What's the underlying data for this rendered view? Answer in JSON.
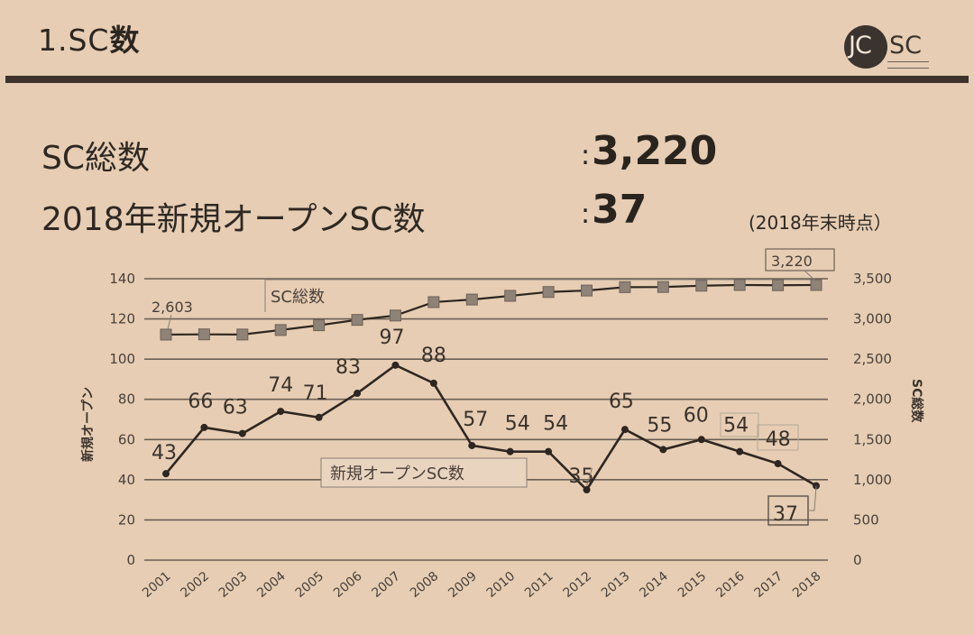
{
  "header": {
    "title_prefix": "1.SC",
    "title_suffix": "数",
    "logo_jc": "JC",
    "logo_sc": "SC"
  },
  "stats": [
    {
      "label": "SC総数",
      "value": "3,220"
    },
    {
      "label": "2018年新規オープンSC数",
      "value": "37"
    }
  ],
  "as_of": "(2018年末時点）",
  "colors": {
    "background": "#e6cdb3",
    "line": "#2e2620",
    "marker_square": "#8f8276",
    "gridline": "#6b5f56"
  },
  "chart_data": {
    "type": "line",
    "title": "",
    "categories": [
      "2001",
      "2002",
      "2003",
      "2004",
      "2005",
      "2006",
      "2007",
      "2008",
      "2009",
      "2010",
      "2011",
      "2012",
      "2013",
      "2014",
      "2015",
      "2016",
      "2017",
      "2018"
    ],
    "series": [
      {
        "name": "新規オープンSC数",
        "axis": "left",
        "marker": "circle",
        "values": [
          43,
          66,
          63,
          74,
          71,
          83,
          97,
          88,
          57,
          54,
          54,
          35,
          65,
          55,
          60,
          54,
          48,
          37
        ],
        "labels_shown": true
      },
      {
        "name": "SC総数",
        "axis": "right",
        "marker": "square",
        "values": [
          2603,
          2606,
          2604,
          2660,
          2719,
          2786,
          2840,
          3007,
          3039,
          3085,
          3133,
          3151,
          3193,
          3195,
          3211,
          3220,
          3217,
          3220
        ],
        "labels_shown": {
          "2001": "2,603",
          "2018": "3,220"
        }
      }
    ],
    "ylabel_left": "新規オープン",
    "ylabel_right": "SC総数",
    "ylim_left": [
      0,
      140
    ],
    "yticks_left": [
      "0",
      "20",
      "40",
      "60",
      "80",
      "100",
      "120",
      "140"
    ],
    "ylim_right": [
      0,
      3500
    ],
    "yticks_right": [
      "0",
      "500",
      "1,000",
      "1,500",
      "2,000",
      "2,500",
      "3,000",
      "3,500"
    ],
    "xlabel": "",
    "grid": true,
    "legend": "inline series tags",
    "series_tags": {
      "total": "SC総数",
      "new": "新規オープンSC数"
    },
    "highlight_labels": {
      "total_2018": "3,220",
      "total_2001": "2,603",
      "new_2018": "37"
    }
  }
}
